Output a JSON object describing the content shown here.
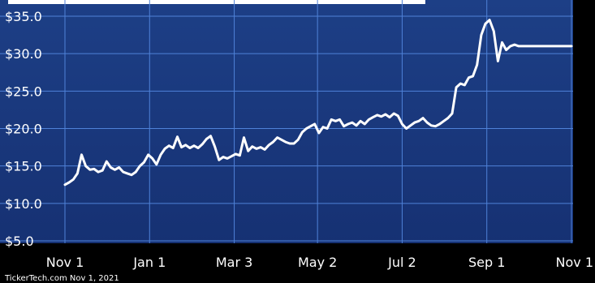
{
  "chart_data": {
    "type": "line",
    "title": "",
    "xlabel": "",
    "ylabel": "",
    "ylim": [
      5,
      35
    ],
    "grid": true,
    "y_ticks": [
      "$35.0",
      "$30.0",
      "$25.0",
      "$20.0",
      "$15.0",
      "$10.0",
      "$5.0"
    ],
    "y_tick_values": [
      35,
      30,
      25,
      20,
      15,
      10,
      5
    ],
    "x_ticks": [
      "Nov 1",
      "Jan 1",
      "Mar 3",
      "May 2",
      "Jul 2",
      "Sep 1",
      "Nov 1"
    ],
    "x_tick_days": [
      0,
      61,
      122,
      182,
      243,
      304,
      365
    ],
    "series": [
      {
        "name": "",
        "x": [
          0,
          3,
          6,
          9,
          12,
          15,
          18,
          21,
          24,
          27,
          30,
          33,
          36,
          39,
          42,
          45,
          48,
          51,
          54,
          57,
          60,
          63,
          66,
          69,
          72,
          75,
          78,
          81,
          84,
          87,
          90,
          93,
          96,
          99,
          102,
          105,
          108,
          111,
          114,
          117,
          120,
          123,
          126,
          129,
          132,
          135,
          138,
          141,
          144,
          147,
          150,
          153,
          156,
          159,
          162,
          165,
          168,
          171,
          174,
          177,
          180,
          183,
          186,
          189,
          192,
          195,
          198,
          201,
          204,
          207,
          210,
          213,
          216,
          219,
          222,
          225,
          228,
          231,
          234,
          237,
          240,
          243,
          246,
          249,
          252,
          255,
          258,
          261,
          264,
          267,
          270,
          273,
          276,
          279,
          282,
          285,
          288,
          291,
          294,
          297,
          300,
          303,
          306,
          309,
          312,
          315,
          318,
          321,
          324,
          327,
          330,
          333,
          336,
          339,
          342,
          345,
          348,
          351,
          354,
          357,
          359,
          361,
          363,
          365
        ],
        "values": [
          12.5,
          12.8,
          13.2,
          14.0,
          16.5,
          15.0,
          14.5,
          14.6,
          14.2,
          14.4,
          15.6,
          14.8,
          14.5,
          14.8,
          14.2,
          14.0,
          13.8,
          14.2,
          15.0,
          15.5,
          16.5,
          16.0,
          15.2,
          16.5,
          17.3,
          17.7,
          17.4,
          18.9,
          17.5,
          17.8,
          17.4,
          17.7,
          17.4,
          17.9,
          18.6,
          19.0,
          17.6,
          15.8,
          16.2,
          16.0,
          16.3,
          16.6,
          16.4,
          18.8,
          17.0,
          17.6,
          17.3,
          17.5,
          17.2,
          17.8,
          18.2,
          18.8,
          18.5,
          18.2,
          18.0,
          18.0,
          18.5,
          19.5,
          20.0,
          20.3,
          20.6,
          19.4,
          20.2,
          20.0,
          21.2,
          21.0,
          21.2,
          20.3,
          20.6,
          20.8,
          20.4,
          21.0,
          20.6,
          21.2,
          21.5,
          21.8,
          21.6,
          21.9,
          21.5,
          22.0,
          21.7,
          20.6,
          20.0,
          20.4,
          20.8,
          21.0,
          21.4,
          20.8,
          20.4,
          20.3,
          20.6,
          21.0,
          21.4,
          22.0,
          25.5,
          26.0,
          25.8,
          26.8,
          27.0,
          28.5,
          32.5,
          34.0,
          34.5,
          33.0,
          29.0,
          31.5,
          30.5,
          31.0,
          31.2,
          31.0,
          31.0,
          31.0,
          31.0,
          31.0,
          31.0,
          31.0,
          31.0,
          31.0,
          31.0,
          31.0,
          31.0,
          31.0,
          31.0,
          31.0
        ]
      }
    ],
    "line_color": "#ffffff",
    "background_color": "#1c3f86",
    "grid_color": "#4f82d8"
  },
  "credit": "TickerTech.com Nov 1, 2021"
}
